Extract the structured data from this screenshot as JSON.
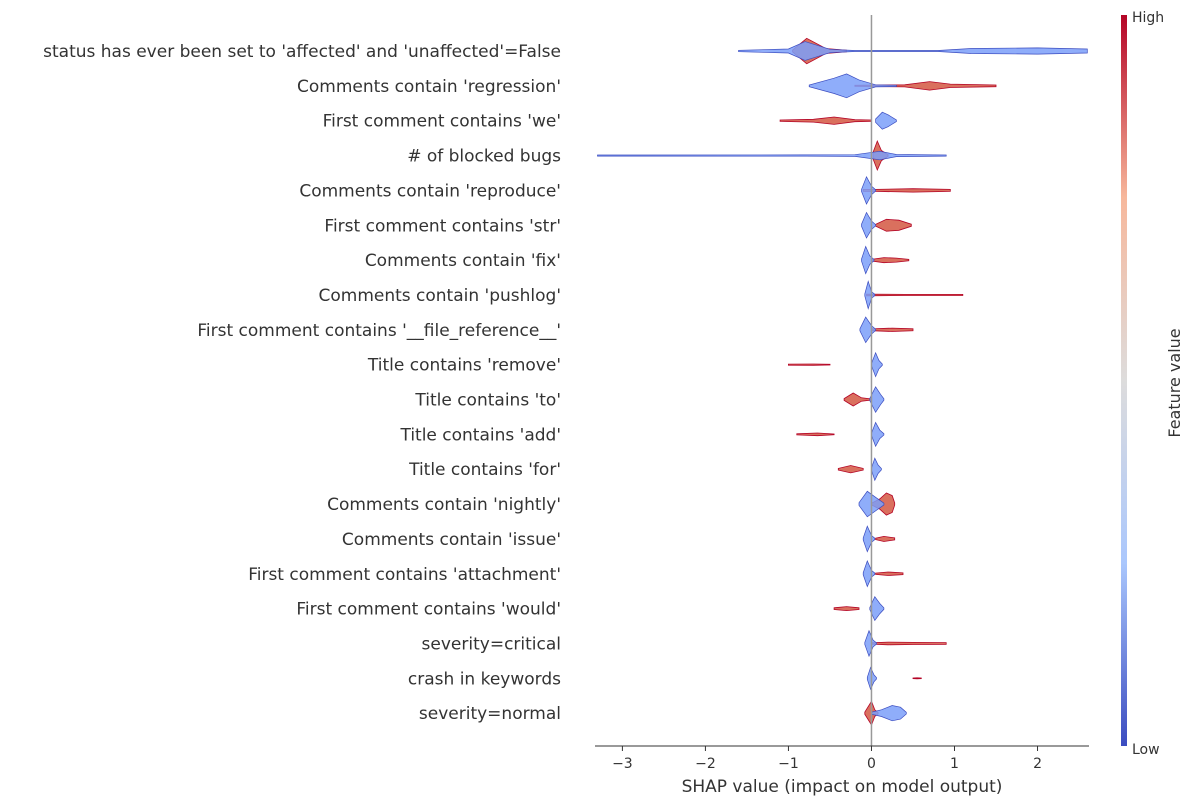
{
  "chart_data": {
    "type": "violin",
    "xlabel": "SHAP value (impact on model output)",
    "xlim": [
      -3.33,
      2.62
    ],
    "xticks": [
      -3,
      -2,
      -1,
      0,
      1,
      2
    ],
    "xtick_labels": [
      "−3",
      "−2",
      "−1",
      "0",
      "1",
      "2"
    ],
    "colorbar": {
      "label": "Feature value",
      "high": "High",
      "low": "Low",
      "colors": [
        "#3b4cc0",
        "#aac7fd",
        "#dddcdc",
        "#f7b89c",
        "#b40426"
      ]
    },
    "features": [
      {
        "name": "status has ever been set to 'affected' and 'unaffected'=False",
        "low": [
          [
            -1.6,
            0.04
          ],
          [
            -1.0,
            0.12
          ],
          [
            -0.8,
            0.55
          ],
          [
            -0.5,
            0.1
          ],
          [
            -0.2,
            0.03
          ],
          [
            0.8,
            0.03
          ],
          [
            1.2,
            0.15
          ],
          [
            2.0,
            0.18
          ],
          [
            2.6,
            0.12
          ]
        ],
        "high": [
          [
            -0.95,
            0.05
          ],
          [
            -0.78,
            0.75
          ],
          [
            -0.55,
            0.15
          ],
          [
            -0.3,
            0.04
          ]
        ]
      },
      {
        "name": "Comments contain 'regression'",
        "low": [
          [
            -0.75,
            0.05
          ],
          [
            -0.45,
            0.45
          ],
          [
            -0.3,
            0.7
          ],
          [
            -0.15,
            0.35
          ],
          [
            0.05,
            0.06
          ],
          [
            0.3,
            0.04
          ]
        ],
        "high": [
          [
            -0.2,
            0.03
          ],
          [
            0.4,
            0.06
          ],
          [
            0.7,
            0.25
          ],
          [
            0.95,
            0.1
          ],
          [
            1.5,
            0.05
          ]
        ]
      },
      {
        "name": "First comment contains 'we'",
        "low": [
          [
            0.05,
            0.1
          ],
          [
            0.13,
            0.5
          ],
          [
            0.2,
            0.35
          ],
          [
            0.3,
            0.05
          ]
        ],
        "high": [
          [
            -1.1,
            0.04
          ],
          [
            -0.7,
            0.08
          ],
          [
            -0.45,
            0.22
          ],
          [
            -0.2,
            0.06
          ],
          [
            0.0,
            0.04
          ]
        ]
      },
      {
        "name": "# of blocked bugs",
        "low": [
          [
            -3.3,
            0.03
          ],
          [
            -0.8,
            0.04
          ],
          [
            -0.2,
            0.05
          ],
          [
            0.1,
            0.25
          ],
          [
            0.3,
            0.06
          ],
          [
            0.9,
            0.03
          ]
        ],
        "high": [
          [
            0.02,
            0.2
          ],
          [
            0.07,
            0.85
          ],
          [
            0.12,
            0.3
          ],
          [
            0.2,
            0.05
          ]
        ]
      },
      {
        "name": "Comments contain 'reproduce'",
        "low": [
          [
            -0.12,
            0.06
          ],
          [
            -0.06,
            0.8
          ],
          [
            0.0,
            0.25
          ],
          [
            0.05,
            0.04
          ]
        ],
        "high": [
          [
            -0.1,
            0.06
          ],
          [
            0.05,
            0.06
          ],
          [
            0.5,
            0.1
          ],
          [
            0.95,
            0.06
          ]
        ]
      },
      {
        "name": "First comment contains 'str'",
        "low": [
          [
            -0.12,
            0.06
          ],
          [
            -0.06,
            0.75
          ],
          [
            0.0,
            0.25
          ],
          [
            0.05,
            0.04
          ]
        ],
        "high": [
          [
            0.05,
            0.05
          ],
          [
            0.18,
            0.35
          ],
          [
            0.33,
            0.3
          ],
          [
            0.48,
            0.06
          ]
        ]
      },
      {
        "name": "Comments contain 'fix'",
        "low": [
          [
            -0.12,
            0.06
          ],
          [
            -0.07,
            0.8
          ],
          [
            -0.02,
            0.25
          ],
          [
            0.03,
            0.04
          ]
        ],
        "high": [
          [
            0.0,
            0.05
          ],
          [
            0.15,
            0.15
          ],
          [
            0.3,
            0.12
          ],
          [
            0.45,
            0.04
          ]
        ]
      },
      {
        "name": "Comments contain 'pushlog'",
        "low": [
          [
            -0.08,
            0.06
          ],
          [
            -0.04,
            0.8
          ],
          [
            0.0,
            0.2
          ],
          [
            0.04,
            0.04
          ]
        ],
        "high": [
          [
            -0.06,
            0.05
          ],
          [
            0.4,
            0.03
          ],
          [
            1.1,
            0.03
          ]
        ]
      },
      {
        "name": "First comment contains '__file_reference__'",
        "low": [
          [
            -0.14,
            0.06
          ],
          [
            -0.07,
            0.75
          ],
          [
            0.0,
            0.25
          ],
          [
            0.05,
            0.04
          ]
        ],
        "high": [
          [
            0.0,
            0.05
          ],
          [
            0.25,
            0.1
          ],
          [
            0.5,
            0.06
          ]
        ]
      },
      {
        "name": "Title contains 'remove'",
        "low": [
          [
            0.0,
            0.06
          ],
          [
            0.05,
            0.7
          ],
          [
            0.09,
            0.25
          ],
          [
            0.13,
            0.04
          ]
        ],
        "high": [
          [
            -1.0,
            0.03
          ],
          [
            -0.7,
            0.04
          ],
          [
            -0.5,
            0.02
          ]
        ]
      },
      {
        "name": "Title contains 'to'",
        "low": [
          [
            -0.02,
            0.06
          ],
          [
            0.05,
            0.75
          ],
          [
            0.11,
            0.3
          ],
          [
            0.15,
            0.04
          ]
        ],
        "high": [
          [
            -0.33,
            0.05
          ],
          [
            -0.22,
            0.38
          ],
          [
            -0.12,
            0.1
          ],
          [
            0.0,
            0.03
          ]
        ]
      },
      {
        "name": "Title contains 'add'",
        "low": [
          [
            0.0,
            0.06
          ],
          [
            0.05,
            0.7
          ],
          [
            0.1,
            0.25
          ],
          [
            0.15,
            0.04
          ]
        ],
        "high": [
          [
            -0.9,
            0.03
          ],
          [
            -0.65,
            0.08
          ],
          [
            -0.45,
            0.02
          ]
        ]
      },
      {
        "name": "Title contains 'for'",
        "low": [
          [
            0.0,
            0.06
          ],
          [
            0.04,
            0.65
          ],
          [
            0.08,
            0.25
          ],
          [
            0.12,
            0.04
          ]
        ],
        "high": [
          [
            -0.4,
            0.05
          ],
          [
            -0.25,
            0.22
          ],
          [
            -0.1,
            0.05
          ]
        ]
      },
      {
        "name": "Comments contain 'nightly'",
        "low": [
          [
            -0.15,
            0.08
          ],
          [
            -0.05,
            0.75
          ],
          [
            0.05,
            0.4
          ],
          [
            0.15,
            0.05
          ]
        ],
        "high": [
          [
            0.0,
            0.05
          ],
          [
            0.1,
            0.3
          ],
          [
            0.18,
            0.65
          ],
          [
            0.25,
            0.5
          ],
          [
            0.28,
            0.06
          ]
        ]
      },
      {
        "name": "Comments contain 'issue'",
        "low": [
          [
            -0.1,
            0.06
          ],
          [
            -0.05,
            0.75
          ],
          [
            0.0,
            0.2
          ],
          [
            0.04,
            0.04
          ]
        ],
        "high": [
          [
            0.05,
            0.04
          ],
          [
            0.15,
            0.15
          ],
          [
            0.28,
            0.06
          ]
        ]
      },
      {
        "name": "First comment contains 'attachment'",
        "low": [
          [
            -0.1,
            0.06
          ],
          [
            -0.05,
            0.75
          ],
          [
            0.0,
            0.2
          ],
          [
            0.04,
            0.04
          ]
        ],
        "high": [
          [
            0.05,
            0.04
          ],
          [
            0.2,
            0.1
          ],
          [
            0.38,
            0.05
          ]
        ]
      },
      {
        "name": "First comment contains 'would'",
        "low": [
          [
            -0.02,
            0.06
          ],
          [
            0.04,
            0.7
          ],
          [
            0.1,
            0.3
          ],
          [
            0.15,
            0.04
          ]
        ],
        "high": [
          [
            -0.45,
            0.05
          ],
          [
            -0.3,
            0.12
          ],
          [
            -0.15,
            0.05
          ]
        ]
      },
      {
        "name": "severity=critical",
        "low": [
          [
            -0.08,
            0.06
          ],
          [
            -0.03,
            0.75
          ],
          [
            0.02,
            0.2
          ],
          [
            0.06,
            0.04
          ]
        ],
        "high": [
          [
            0.0,
            0.04
          ],
          [
            0.2,
            0.08
          ],
          [
            0.5,
            0.06
          ],
          [
            0.9,
            0.05
          ]
        ]
      },
      {
        "name": "crash in keywords",
        "low": [
          [
            -0.05,
            0.06
          ],
          [
            -0.01,
            0.65
          ],
          [
            0.03,
            0.2
          ],
          [
            0.06,
            0.04
          ]
        ],
        "high": [
          [
            0.5,
            0.02
          ],
          [
            0.55,
            0.03
          ],
          [
            0.6,
            0.02
          ]
        ]
      },
      {
        "name": "severity=normal",
        "low": [
          [
            0.0,
            0.06
          ],
          [
            0.12,
            0.2
          ],
          [
            0.25,
            0.45
          ],
          [
            0.35,
            0.35
          ],
          [
            0.42,
            0.05
          ]
        ],
        "high": [
          [
            -0.08,
            0.06
          ],
          [
            0.0,
            0.7
          ],
          [
            0.04,
            0.2
          ],
          [
            0.08,
            0.04
          ]
        ]
      }
    ]
  }
}
